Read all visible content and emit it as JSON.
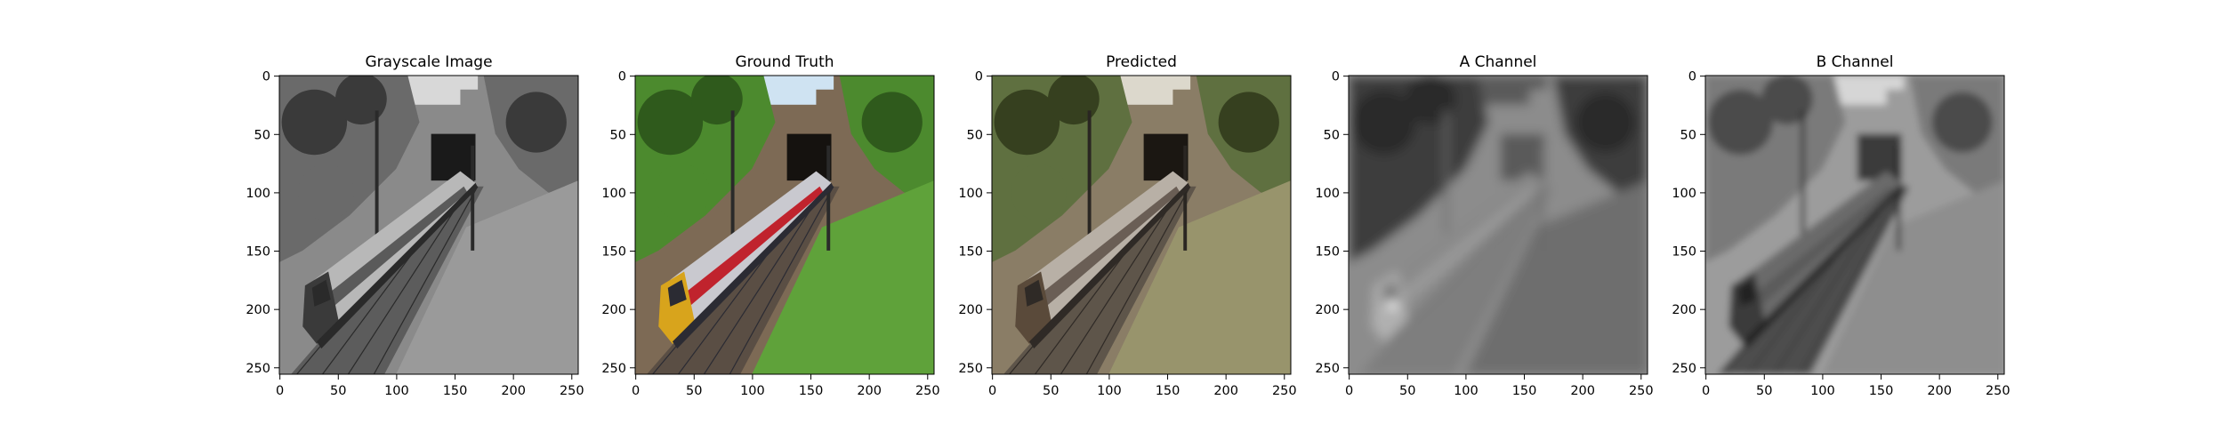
{
  "panels": [
    {
      "title": "Grayscale Image",
      "x_ticks": [
        "0",
        "50",
        "100",
        "150",
        "200",
        "250"
      ],
      "y_ticks": [
        "0",
        "50",
        "100",
        "150",
        "200",
        "250"
      ],
      "image_kind": "grayscale"
    },
    {
      "title": "Ground Truth",
      "x_ticks": [
        "0",
        "50",
        "100",
        "150",
        "200",
        "250"
      ],
      "y_ticks": [
        "0",
        "50",
        "100",
        "150",
        "200",
        "250"
      ],
      "image_kind": "color"
    },
    {
      "title": "Predicted",
      "x_ticks": [
        "0",
        "50",
        "100",
        "150",
        "200",
        "250"
      ],
      "y_ticks": [
        "0",
        "50",
        "100",
        "150",
        "200",
        "250"
      ],
      "image_kind": "predicted"
    },
    {
      "title": "A Channel",
      "x_ticks": [
        "0",
        "50",
        "100",
        "150",
        "200",
        "250"
      ],
      "y_ticks": [
        "0",
        "50",
        "100",
        "150",
        "200",
        "250"
      ],
      "image_kind": "a-channel"
    },
    {
      "title": "B Channel",
      "x_ticks": [
        "0",
        "50",
        "100",
        "150",
        "200",
        "250"
      ],
      "y_ticks": [
        "0",
        "50",
        "100",
        "150",
        "200",
        "250"
      ],
      "image_kind": "b-channel"
    }
  ],
  "tick_values": [
    0,
    50,
    100,
    150,
    200,
    250
  ],
  "image_extent": 256,
  "palettes": {
    "grayscale": {
      "sky": "#d8d8d8",
      "trees": "#6a6a6a",
      "trees_dark": "#3a3a3a",
      "ground": "#8a8a8a",
      "grass": "#9a9a9a",
      "track": "#5c5c5c",
      "train": "#b8b8b8",
      "train_dark": "#2a2a2a",
      "stripe": "#5a5a5a",
      "nose": "#3a3a3a",
      "tunnel": "#1a1a1a",
      "pole": "#2a2a2a"
    },
    "color": {
      "sky": "#cfe3f2",
      "trees": "#4c8a2e",
      "trees_dark": "#2f5a1c",
      "ground": "#7d6a55",
      "grass": "#5fa23a",
      "track": "#5a4e44",
      "train": "#c9c9cf",
      "train_dark": "#2b2b33",
      "stripe": "#c0232d",
      "nose": "#d8a41c",
      "tunnel": "#15120f",
      "pole": "#2a2a2a"
    },
    "predicted": {
      "sky": "#dcd8cc",
      "trees": "#5f7040",
      "trees_dark": "#36401f",
      "ground": "#8a7d66",
      "grass": "#98946c",
      "track": "#5e554a",
      "train": "#b8b0a6",
      "train_dark": "#2f2a26",
      "stripe": "#6a5e55",
      "nose": "#5a4a3a",
      "tunnel": "#1b1712",
      "pole": "#2a2622"
    },
    "a-channel": {
      "sky": "#5a5a5a",
      "trees": "#3e3e3e",
      "trees_dark": "#2c2c2c",
      "ground": "#8c8c8c",
      "grass": "#6e6e6e",
      "track": "#7e7e7e",
      "train": "#8a8a8a",
      "train_dark": "#7a7a7a",
      "stripe": "#9a9a9a",
      "nose": "#b0b0b0",
      "tunnel": "#5a5a5a",
      "pole": "#6a6a6a"
    },
    "b-channel": {
      "sky": "#d6d6d6",
      "trees": "#7a7a7a",
      "trees_dark": "#4c4c4c",
      "ground": "#9c9c9c",
      "grass": "#8e8e8e",
      "track": "#4e4e4e",
      "train": "#6a6a6a",
      "train_dark": "#202020",
      "stripe": "#5a5a5a",
      "nose": "#3a3a3a",
      "tunnel": "#3a3a3a",
      "pole": "#1a1a1a"
    }
  }
}
